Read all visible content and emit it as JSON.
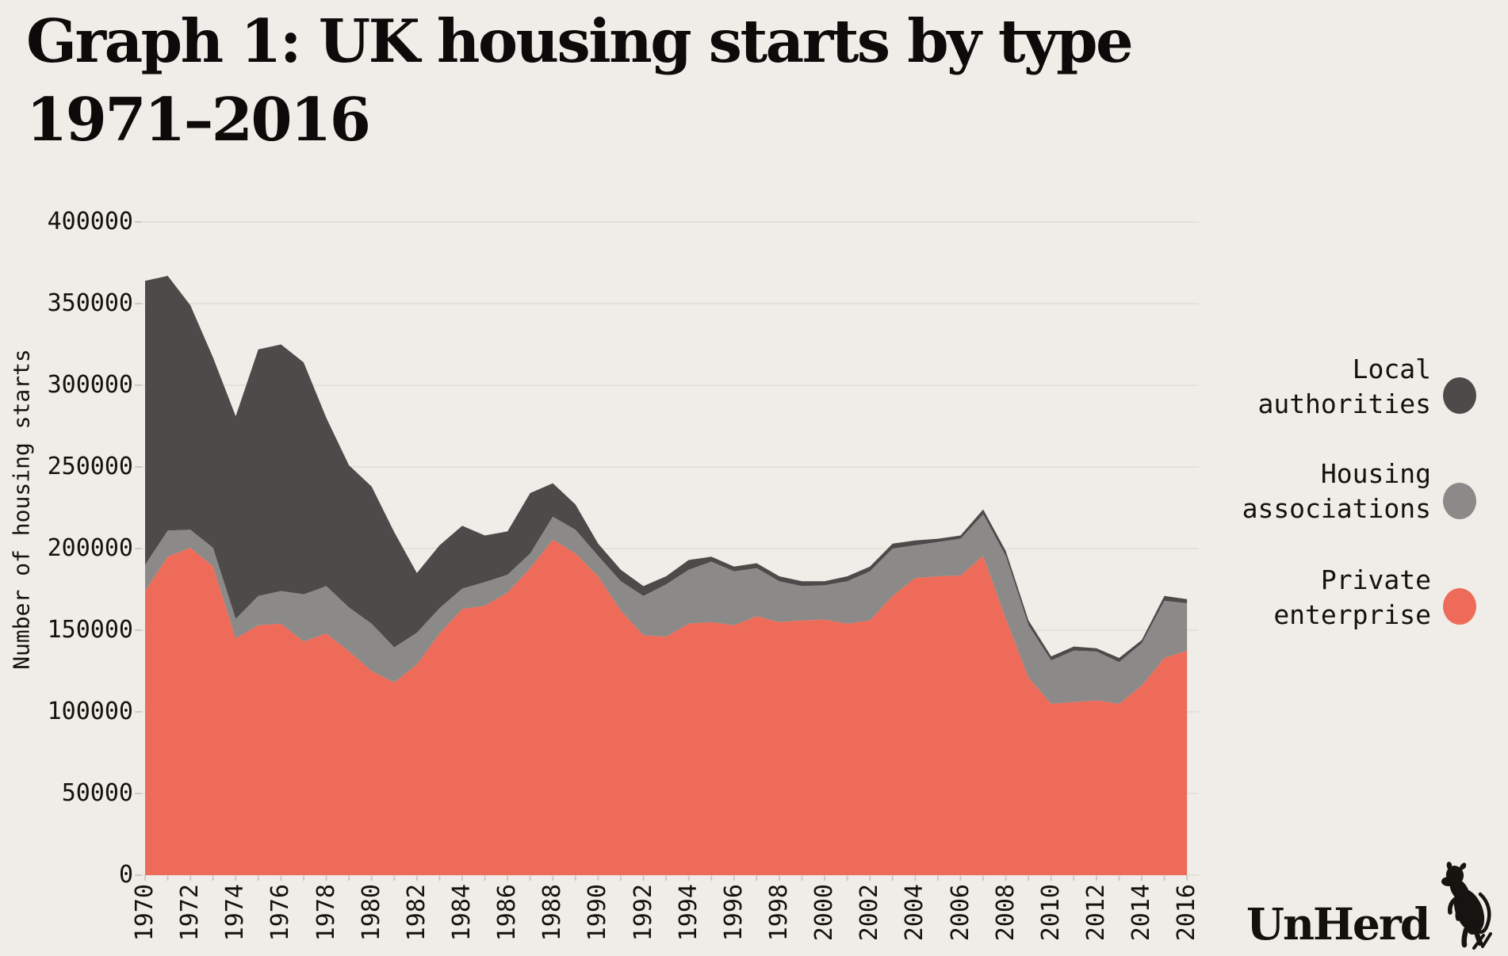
{
  "title": {
    "line1": "Graph 1: UK housing starts by type",
    "line2": "1971–2016"
  },
  "branding": {
    "wordmark": "UnHerd",
    "icon": "cow-icon"
  },
  "colors": {
    "background": "#f0ede8",
    "gridline": "#e4e1db",
    "axis_tick": "#cdcac4",
    "text": "#14110e",
    "local_authorities": "#4c4b49",
    "housing_associations": "#8b8a88",
    "private_enterprise": "#ee6b59"
  },
  "legend": {
    "items": [
      {
        "label": "Local\nauthorities",
        "color": "#4c4b49"
      },
      {
        "label": "Housing\nassociations",
        "color": "#8b8a88"
      },
      {
        "label": "Private\nenterprise",
        "color": "#ee6b59"
      }
    ]
  },
  "chart_data": {
    "type": "area",
    "stacked": true,
    "title": "Graph 1: UK housing starts by type 1971–2016",
    "xlabel": "",
    "ylabel": "Number of housing starts",
    "ylim": [
      0,
      400000
    ],
    "grid": "horizontal",
    "legend_position": "right",
    "years": [
      1970,
      1971,
      1972,
      1973,
      1974,
      1975,
      1976,
      1977,
      1978,
      1979,
      1980,
      1981,
      1982,
      1983,
      1984,
      1985,
      1986,
      1987,
      1988,
      1989,
      1990,
      1991,
      1992,
      1993,
      1994,
      1995,
      1996,
      1997,
      1998,
      1999,
      2000,
      2001,
      2002,
      2003,
      2004,
      2005,
      2006,
      2007,
      2008,
      2009,
      2010,
      2011,
      2012,
      2013,
      2014,
      2015,
      2016
    ],
    "series": [
      {
        "name": "Private enterprise",
        "color": "#ee6b59",
        "values": [
          174000,
          195000,
          200500,
          189000,
          145000,
          153000,
          154000,
          143000,
          148000,
          137000,
          125000,
          118000,
          129000,
          148000,
          163000,
          165000,
          173000,
          188000,
          205500,
          197000,
          183000,
          162000,
          147000,
          146000,
          154000,
          155000,
          153000,
          158500,
          155000,
          156000,
          156500,
          154000,
          156000,
          171000,
          182000,
          183000,
          183500,
          195500,
          157000,
          121000,
          105000,
          106000,
          107000,
          105000,
          116000,
          133000,
          137500
        ]
      },
      {
        "name": "Housing associations",
        "color": "#8b8a88",
        "values": [
          16000,
          16000,
          11000,
          11500,
          12000,
          18000,
          20000,
          29000,
          29000,
          27000,
          29000,
          21500,
          19500,
          15500,
          12500,
          14500,
          11000,
          9000,
          14000,
          14500,
          12500,
          18000,
          24000,
          32000,
          33000,
          37000,
          33000,
          29500,
          25000,
          21000,
          21000,
          26000,
          30000,
          29000,
          20000,
          21000,
          22500,
          25500,
          38500,
          32000,
          26500,
          31500,
          30000,
          25500,
          26000,
          35000,
          29000
        ]
      },
      {
        "name": "Local authorities",
        "color": "#4c4b49",
        "values": [
          174000,
          156000,
          137500,
          116500,
          124000,
          151000,
          151000,
          142000,
          103000,
          87000,
          84000,
          70500,
          36500,
          38500,
          38500,
          28500,
          26500,
          37000,
          20500,
          15500,
          7500,
          7000,
          6000,
          5000,
          6000,
          3000,
          3000,
          3000,
          3000,
          3000,
          2500,
          3000,
          3000,
          3000,
          3000,
          2000,
          2000,
          3000,
          3000,
          3000,
          2500,
          2500,
          2000,
          2500,
          2000,
          3000,
          2500
        ]
      }
    ],
    "y_ticks": [
      0,
      50000,
      100000,
      150000,
      200000,
      250000,
      300000,
      350000,
      400000
    ],
    "y_tick_labels": [
      "0",
      "50000",
      "100000",
      "150000",
      "200000",
      "250000",
      "300000",
      "350000",
      "400000"
    ],
    "x_tick_years": [
      1970,
      1972,
      1974,
      1976,
      1978,
      1980,
      1982,
      1984,
      1986,
      1988,
      1990,
      1992,
      1994,
      1996,
      1998,
      2000,
      2002,
      2004,
      2006,
      2008,
      2010,
      2012,
      2014,
      2016
    ],
    "x_tick_labels": [
      "1970",
      "1972",
      "1974",
      "1976",
      "1978",
      "1980",
      "1982",
      "1984",
      "1986",
      "1988",
      "1990",
      "1992",
      "1994",
      "1996",
      "1998",
      "2000",
      "2002",
      "2004",
      "2006",
      "2008",
      "2010",
      "2012",
      "2014",
      "2016"
    ]
  }
}
